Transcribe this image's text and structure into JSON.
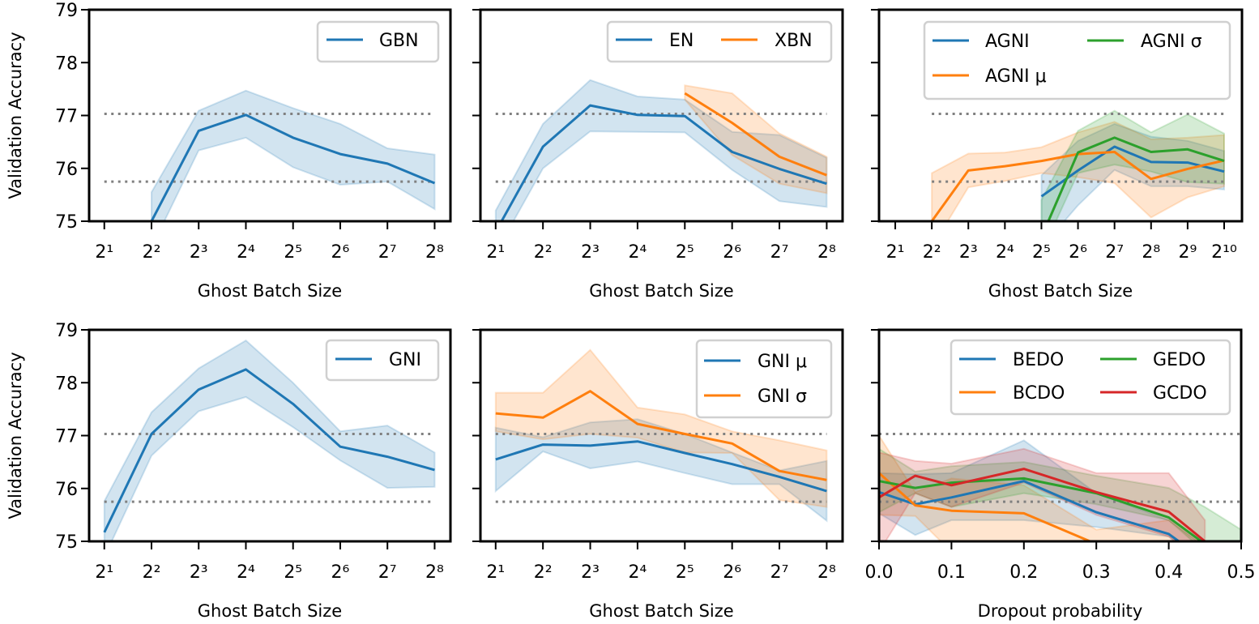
{
  "colors": {
    "blue": "#1f77b4",
    "orange": "#ff7f0e",
    "green": "#2ca02c",
    "red": "#d62728",
    "reference": "#808080"
  },
  "chart_data": [
    {
      "type": "line",
      "xlabel": "Ghost Batch Size",
      "ylabel": "Validation Accuracy",
      "xscale": "log2",
      "xlim": [
        1.6,
        323
      ],
      "ylim": [
        75,
        79
      ],
      "xticks": [
        2,
        4,
        8,
        16,
        32,
        64,
        128,
        256
      ],
      "xtick_labels": [
        "2¹",
        "2²",
        "2³",
        "2⁴",
        "2⁵",
        "2⁶",
        "2⁷",
        "2⁸"
      ],
      "yticks": [
        75,
        76,
        77,
        78,
        79
      ],
      "ytick_labels": [
        "75",
        "76",
        "77",
        "78",
        "79"
      ],
      "reference_lines": [
        77.03,
        75.75
      ],
      "reference_span": [
        2,
        256
      ],
      "legend": "top-right",
      "legend_columns": 1,
      "series": [
        {
          "name": "GBN",
          "color": "#1f77b4",
          "x": [
            4,
            8,
            16,
            32,
            64,
            128,
            256
          ],
          "y": [
            75.0,
            76.71,
            77.01,
            76.58,
            76.27,
            76.09,
            75.72
          ],
          "upper": [
            75.55,
            77.09,
            77.47,
            77.14,
            76.84,
            76.38,
            76.26
          ],
          "lower": [
            74.5,
            76.34,
            76.58,
            76.02,
            75.69,
            75.75,
            75.23
          ]
        }
      ]
    },
    {
      "type": "line",
      "xlabel": "Ghost Batch Size",
      "ylabel": "",
      "xscale": "log2",
      "xlim": [
        1.6,
        323
      ],
      "ylim": [
        75,
        79
      ],
      "xticks": [
        2,
        4,
        8,
        16,
        32,
        64,
        128,
        256
      ],
      "xtick_labels": [
        "2¹",
        "2²",
        "2³",
        "2⁴",
        "2⁵",
        "2⁶",
        "2⁷",
        "2⁸"
      ],
      "yticks": [
        75,
        76,
        77,
        78,
        79
      ],
      "ytick_labels": [],
      "reference_lines": [
        77.03,
        75.75
      ],
      "reference_span": [
        2,
        256
      ],
      "legend": "top-right",
      "legend_columns": 2,
      "series": [
        {
          "name": "EN",
          "color": "#1f77b4",
          "x": [
            2,
            4,
            8,
            16,
            32,
            64,
            128,
            256
          ],
          "y": [
            74.8,
            76.41,
            77.19,
            77.01,
            76.99,
            76.31,
            75.99,
            75.71
          ],
          "upper": [
            75.2,
            76.84,
            77.67,
            77.36,
            77.3,
            76.69,
            76.63,
            76.2
          ],
          "lower": [
            74.4,
            76.0,
            76.7,
            76.69,
            76.68,
            75.97,
            75.38,
            75.27
          ]
        },
        {
          "name": "XBN",
          "color": "#ff7f0e",
          "x": [
            32,
            64,
            128,
            256
          ],
          "y": [
            77.42,
            76.86,
            76.22,
            75.87
          ],
          "upper": [
            77.57,
            77.42,
            76.66,
            76.22
          ],
          "lower": [
            77.3,
            76.25,
            75.71,
            75.53
          ]
        }
      ]
    },
    {
      "type": "line",
      "xlabel": "Ghost Batch Size",
      "ylabel": "",
      "xscale": "log2",
      "xlim": [
        1.47,
        1436
      ],
      "ylim": [
        75,
        79
      ],
      "xticks": [
        2,
        4,
        8,
        16,
        32,
        64,
        128,
        256,
        512,
        1024
      ],
      "xtick_labels": [
        "2¹",
        "2²",
        "2³",
        "2⁴",
        "2⁵",
        "2⁶",
        "2⁷",
        "2⁸",
        "2⁹",
        "2¹⁰"
      ],
      "yticks": [
        75,
        76,
        77,
        78,
        79
      ],
      "ytick_labels": [],
      "reference_lines": [
        77.03,
        75.75
      ],
      "reference_span": [
        4,
        1024
      ],
      "legend": "top-right",
      "legend_columns": 2,
      "series": [
        {
          "name": "AGNI",
          "color": "#1f77b4",
          "x": [
            32,
            64,
            128,
            256,
            512,
            1024
          ],
          "y": [
            75.47,
            75.96,
            76.41,
            76.12,
            76.11,
            75.94
          ],
          "upper": [
            75.87,
            76.52,
            76.84,
            76.6,
            76.52,
            76.33
          ],
          "lower": [
            74.5,
            75.3,
            75.97,
            75.66,
            75.66,
            75.6
          ]
        },
        {
          "name": "AGNI μ",
          "color": "#ff7f0e",
          "x": [
            4,
            8,
            16,
            32,
            64,
            128,
            256,
            512,
            1024
          ],
          "y": [
            75.0,
            75.96,
            76.04,
            76.14,
            76.27,
            76.31,
            75.8,
            75.99,
            76.15
          ],
          "upper": [
            75.91,
            76.28,
            76.3,
            76.4,
            76.68,
            76.88,
            76.55,
            76.58,
            76.63
          ],
          "lower": [
            74.5,
            75.64,
            75.76,
            75.91,
            75.83,
            75.72,
            75.07,
            75.45,
            75.66
          ]
        },
        {
          "name": "AGNI σ",
          "color": "#2ca02c",
          "x": [
            32,
            64,
            128,
            256,
            512,
            1024
          ],
          "y": [
            74.7,
            76.3,
            76.58,
            76.31,
            76.36,
            76.14
          ],
          "upper": [
            75.4,
            76.71,
            77.09,
            76.68,
            77.02,
            76.66
          ],
          "lower": [
            74.4,
            75.91,
            76.07,
            75.94,
            75.74,
            75.71
          ]
        }
      ]
    },
    {
      "type": "line",
      "xlabel": "Ghost Batch Size",
      "ylabel": "Validation Accuracy",
      "xscale": "log2",
      "xlim": [
        1.6,
        323
      ],
      "ylim": [
        75,
        79
      ],
      "xticks": [
        2,
        4,
        8,
        16,
        32,
        64,
        128,
        256
      ],
      "xtick_labels": [
        "2¹",
        "2²",
        "2³",
        "2⁴",
        "2⁵",
        "2⁶",
        "2⁷",
        "2⁸"
      ],
      "yticks": [
        75,
        76,
        77,
        78,
        79
      ],
      "ytick_labels": [
        "75",
        "76",
        "77",
        "78",
        "79"
      ],
      "reference_lines": [
        77.03,
        75.75
      ],
      "reference_span": [
        2,
        256
      ],
      "legend": "top-right",
      "legend_columns": 1,
      "series": [
        {
          "name": "GNI",
          "color": "#1f77b4",
          "x": [
            2,
            4,
            8,
            16,
            32,
            64,
            128,
            256
          ],
          "y": [
            75.17,
            77.03,
            77.87,
            78.25,
            77.6,
            76.79,
            76.6,
            76.35
          ],
          "upper": [
            75.76,
            77.44,
            78.27,
            78.8,
            78.0,
            77.08,
            77.19,
            76.68
          ],
          "lower": [
            74.7,
            76.62,
            77.46,
            77.73,
            77.16,
            76.53,
            76.01,
            76.03
          ]
        }
      ]
    },
    {
      "type": "line",
      "xlabel": "Ghost Batch Size",
      "ylabel": "",
      "xscale": "log2",
      "xlim": [
        1.6,
        323
      ],
      "ylim": [
        75,
        79
      ],
      "xticks": [
        2,
        4,
        8,
        16,
        32,
        64,
        128,
        256
      ],
      "xtick_labels": [
        "2¹",
        "2²",
        "2³",
        "2⁴",
        "2⁵",
        "2⁶",
        "2⁷",
        "2⁸"
      ],
      "yticks": [
        75,
        76,
        77,
        78,
        79
      ],
      "ytick_labels": [],
      "reference_lines": [
        77.03,
        75.75
      ],
      "reference_span": [
        2,
        256
      ],
      "legend": "top-right",
      "legend_columns": 1,
      "series": [
        {
          "name": "GNI μ",
          "color": "#1f77b4",
          "x": [
            2,
            4,
            8,
            16,
            32,
            64,
            128,
            256
          ],
          "y": [
            76.55,
            76.83,
            76.81,
            76.89,
            76.67,
            76.46,
            76.22,
            75.95
          ],
          "upper": [
            77.15,
            76.97,
            77.25,
            77.31,
            77.03,
            76.68,
            76.34,
            76.52
          ],
          "lower": [
            75.95,
            76.7,
            76.38,
            76.51,
            76.29,
            76.08,
            76.08,
            75.39
          ]
        },
        {
          "name": "GNI σ",
          "color": "#ff7f0e",
          "x": [
            2,
            4,
            8,
            16,
            32,
            64,
            128,
            256
          ],
          "y": [
            77.42,
            77.34,
            77.84,
            77.22,
            77.03,
            76.85,
            76.33,
            76.16
          ],
          "upper": [
            77.81,
            77.81,
            78.62,
            77.53,
            77.4,
            77.08,
            76.91,
            76.72
          ],
          "lower": [
            77.08,
            76.93,
            77.03,
            76.96,
            76.68,
            76.67,
            75.78,
            75.65
          ]
        }
      ]
    },
    {
      "type": "line",
      "xlabel": "Dropout probability",
      "ylabel": "",
      "xscale": "linear",
      "xlim": [
        0,
        0.5
      ],
      "ylim": [
        75,
        79
      ],
      "xticks": [
        0,
        0.1,
        0.2,
        0.3,
        0.4,
        0.5
      ],
      "xtick_labels": [
        "0.0",
        "0.1",
        "0.2",
        "0.3",
        "0.4",
        "0.5"
      ],
      "yticks": [
        75,
        76,
        77,
        78,
        79
      ],
      "ytick_labels": [],
      "reference_lines": [
        77.03,
        75.75
      ],
      "reference_span": [
        0,
        0.5
      ],
      "legend": "top-right",
      "legend_columns": 2,
      "series": [
        {
          "name": "BEDO",
          "color": "#1f77b4",
          "x": [
            0,
            0.05,
            0.1,
            0.2,
            0.3,
            0.4,
            0.45
          ],
          "y": [
            75.93,
            75.7,
            75.83,
            76.14,
            75.55,
            75.14,
            74.64
          ],
          "upper": [
            76.29,
            76.27,
            76.29,
            76.91,
            75.91,
            75.4,
            74.9
          ],
          "lower": [
            75.53,
            75.12,
            75.4,
            75.4,
            75.27,
            75.09,
            74.5
          ]
        },
        {
          "name": "BCDO",
          "color": "#ff7f0e",
          "x": [
            0,
            0.05,
            0.1,
            0.2,
            0.3,
            0.4,
            0.45
          ],
          "y": [
            76.29,
            75.68,
            75.58,
            75.53,
            74.95,
            74.7,
            74.6
          ],
          "upper": [
            77.0,
            75.93,
            76.19,
            76.06,
            75.22,
            75.4,
            74.9
          ],
          "lower": [
            75.5,
            75.48,
            74.8,
            74.5,
            74.5,
            74.5,
            74.5
          ]
        },
        {
          "name": "GEDO",
          "color": "#2ca02c",
          "x": [
            0,
            0.05,
            0.1,
            0.2,
            0.3,
            0.4,
            0.45,
            0.5
          ],
          "y": [
            76.14,
            76.01,
            76.11,
            76.19,
            75.91,
            75.45,
            74.95,
            74.6
          ],
          "upper": [
            76.75,
            76.32,
            76.42,
            76.5,
            76.24,
            76.01,
            75.65,
            75.22
          ],
          "lower": [
            75.55,
            75.91,
            75.65,
            75.91,
            75.7,
            75.4,
            74.8,
            74.4
          ]
        },
        {
          "name": "GCDO",
          "color": "#d62728",
          "x": [
            0,
            0.05,
            0.1,
            0.2,
            0.3,
            0.4,
            0.45
          ],
          "y": [
            75.83,
            76.24,
            76.06,
            76.37,
            75.93,
            75.56,
            75.0
          ],
          "upper": [
            76.68,
            76.52,
            76.47,
            76.75,
            76.29,
            76.29,
            75.4
          ],
          "lower": [
            74.8,
            75.91,
            75.65,
            76.11,
            75.5,
            75.09,
            74.6
          ]
        }
      ]
    }
  ]
}
